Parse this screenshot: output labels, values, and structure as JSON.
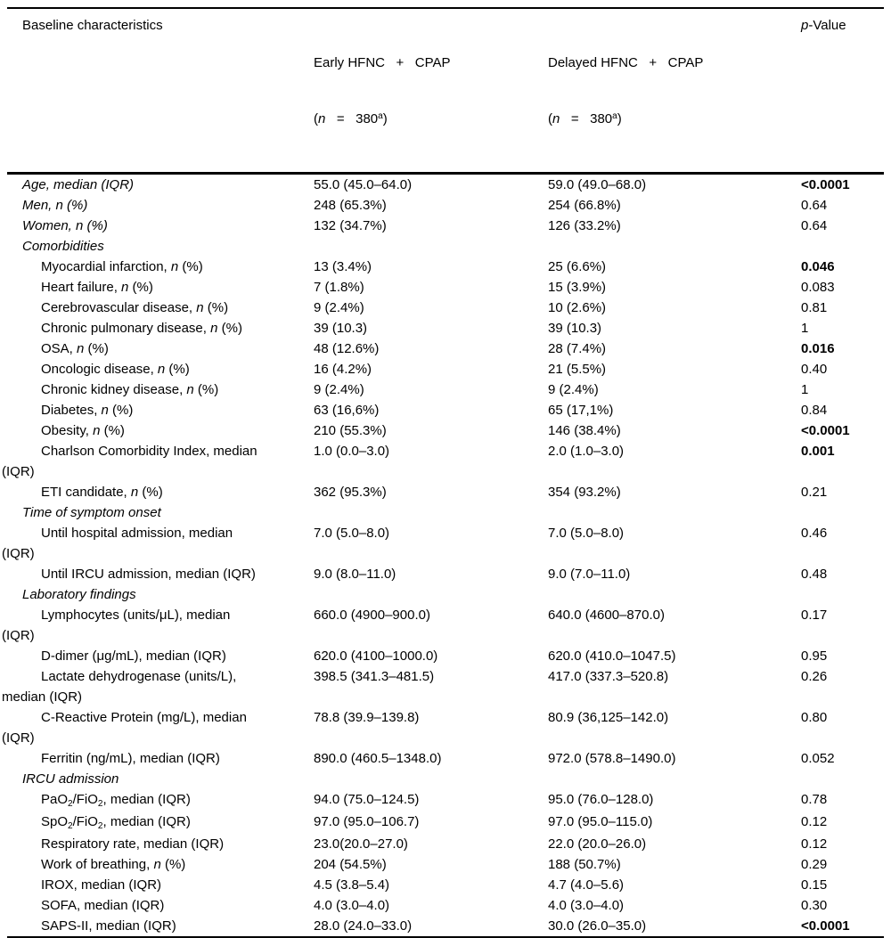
{
  "header": {
    "col1": "Baseline characteristics",
    "early": {
      "line1": [
        {
          "t": "Early HFNC   +   CPAP"
        }
      ],
      "line2": [
        {
          "t": "("
        },
        {
          "t": "n",
          "i": true
        },
        {
          "t": "   =   380"
        },
        {
          "t": "a",
          "sup": true
        },
        {
          "t": ")"
        }
      ]
    },
    "delayed": {
      "line1": [
        {
          "t": "Delayed HFNC   +   CPAP"
        }
      ],
      "line2": [
        {
          "t": "("
        },
        {
          "t": "n",
          "i": true
        },
        {
          "t": "   =   380"
        },
        {
          "t": "a",
          "sup": true
        },
        {
          "t": ")"
        }
      ]
    },
    "pvalue": [
      {
        "t": "p",
        "i": true
      },
      {
        "t": "-Value"
      }
    ]
  },
  "rows": [
    {
      "type": "top",
      "label": [
        [
          {
            "t": "Age, median (IQR)"
          }
        ]
      ],
      "early": "55.0 (45.0–64.0)",
      "delayed": "59.0 (49.0–68.0)",
      "p": "<0.0001",
      "p_bold": true
    },
    {
      "type": "top",
      "label": [
        [
          {
            "t": "Men, n (%)"
          }
        ]
      ],
      "early": "248 (65.3%)",
      "delayed": "254 (66.8%)",
      "p": "0.64",
      "p_bold": false
    },
    {
      "type": "top",
      "label": [
        [
          {
            "t": "Women, n (%)"
          }
        ]
      ],
      "early": "132 (34.7%)",
      "delayed": "126 (33.2%)",
      "p": "0.64",
      "p_bold": false
    },
    {
      "type": "section",
      "label": [
        [
          {
            "t": "Comorbidities"
          }
        ]
      ]
    },
    {
      "type": "sub",
      "label": [
        [
          {
            "t": "Myocardial infarction, "
          },
          {
            "t": "n",
            "i": true
          },
          {
            "t": " (%)"
          }
        ]
      ],
      "early": "13 (3.4%)",
      "delayed": "25 (6.6%)",
      "p": "0.046",
      "p_bold": true
    },
    {
      "type": "sub",
      "label": [
        [
          {
            "t": "Heart failure, "
          },
          {
            "t": "n",
            "i": true
          },
          {
            "t": " (%)"
          }
        ]
      ],
      "early": "7 (1.8%)",
      "delayed": "15 (3.9%)",
      "p": "0.083",
      "p_bold": false
    },
    {
      "type": "sub",
      "label": [
        [
          {
            "t": "Cerebrovascular disease, "
          },
          {
            "t": "n",
            "i": true
          },
          {
            "t": " (%)"
          }
        ]
      ],
      "early": "9 (2.4%)",
      "delayed": "10 (2.6%)",
      "p": "0.81",
      "p_bold": false
    },
    {
      "type": "sub",
      "label": [
        [
          {
            "t": "Chronic pulmonary disease, "
          },
          {
            "t": "n",
            "i": true
          },
          {
            "t": " (%)"
          }
        ]
      ],
      "early": "39 (10.3)",
      "delayed": "39 (10.3)",
      "p": "1",
      "p_bold": false
    },
    {
      "type": "sub",
      "label": [
        [
          {
            "t": "OSA, "
          },
          {
            "t": "n",
            "i": true
          },
          {
            "t": " (%)"
          }
        ]
      ],
      "early": "48 (12.6%)",
      "delayed": "28 (7.4%)",
      "p": "0.016",
      "p_bold": true
    },
    {
      "type": "sub",
      "label": [
        [
          {
            "t": "Oncologic disease, "
          },
          {
            "t": "n",
            "i": true
          },
          {
            "t": " (%)"
          }
        ]
      ],
      "early": "16 (4.2%)",
      "delayed": "21 (5.5%)",
      "p": "0.40",
      "p_bold": false
    },
    {
      "type": "sub",
      "label": [
        [
          {
            "t": "Chronic kidney disease, "
          },
          {
            "t": "n",
            "i": true
          },
          {
            "t": " (%)"
          }
        ]
      ],
      "early": "9 (2.4%)",
      "delayed": "9 (2.4%)",
      "p": "1",
      "p_bold": false
    },
    {
      "type": "sub",
      "label": [
        [
          {
            "t": "Diabetes, "
          },
          {
            "t": "n",
            "i": true
          },
          {
            "t": " (%)"
          }
        ]
      ],
      "early": "63 (16,6%)",
      "delayed": "65 (17,1%)",
      "p": "0.84",
      "p_bold": false
    },
    {
      "type": "sub",
      "label": [
        [
          {
            "t": "Obesity, "
          },
          {
            "t": "n",
            "i": true
          },
          {
            "t": " (%)"
          }
        ]
      ],
      "early": "210 (55.3%)",
      "delayed": "146 (38.4%)",
      "p": "<0.0001",
      "p_bold": true
    },
    {
      "type": "sub",
      "label": [
        [
          {
            "t": "Charlson Comorbidity Index, median"
          }
        ],
        [
          {
            "t": "(IQR)"
          }
        ]
      ],
      "early": "1.0 (0.0–3.0)",
      "delayed": "2.0 (1.0–3.0)",
      "p": "0.001",
      "p_bold": true
    },
    {
      "type": "sub",
      "label": [
        [
          {
            "t": "ETI candidate, "
          },
          {
            "t": "n",
            "i": true
          },
          {
            "t": " (%)"
          }
        ]
      ],
      "early": "362 (95.3%)",
      "delayed": "354 (93.2%)",
      "p": "0.21",
      "p_bold": false
    },
    {
      "type": "section",
      "label": [
        [
          {
            "t": "Time of symptom onset"
          }
        ]
      ]
    },
    {
      "type": "sub",
      "label": [
        [
          {
            "t": "Until hospital admission, median"
          }
        ],
        [
          {
            "t": "(IQR)"
          }
        ]
      ],
      "early": "7.0 (5.0–8.0)",
      "delayed": "7.0 (5.0–8.0)",
      "p": "0.46",
      "p_bold": false
    },
    {
      "type": "sub",
      "label": [
        [
          {
            "t": "Until IRCU admission, median (IQR)"
          }
        ]
      ],
      "early": "9.0 (8.0–11.0)",
      "delayed": "9.0 (7.0–11.0)",
      "p": "0.48",
      "p_bold": false
    },
    {
      "type": "section",
      "label": [
        [
          {
            "t": "Laboratory findings"
          }
        ]
      ]
    },
    {
      "type": "sub",
      "label": [
        [
          {
            "t": "Lymphocytes (units/μL), median"
          }
        ],
        [
          {
            "t": "(IQR)"
          }
        ]
      ],
      "early": "660.0 (4900–900.0)",
      "delayed": "640.0 (4600–870.0)",
      "p": "0.17",
      "p_bold": false
    },
    {
      "type": "sub",
      "label": [
        [
          {
            "t": "D-dimer (μg/mL), median (IQR)"
          }
        ]
      ],
      "early": "620.0 (4100–1000.0)",
      "delayed": "620.0 (410.0–1047.5)",
      "p": "0.95",
      "p_bold": false
    },
    {
      "type": "sub",
      "label": [
        [
          {
            "t": "Lactate dehydrogenase (units/L),"
          }
        ],
        [
          {
            "t": "median (IQR)"
          }
        ]
      ],
      "early": "398.5 (341.3–481.5)",
      "delayed": "417.0 (337.3–520.8)",
      "p": "0.26",
      "p_bold": false
    },
    {
      "type": "sub",
      "label": [
        [
          {
            "t": "C-Reactive Protein (mg/L), median"
          }
        ],
        [
          {
            "t": "(IQR)"
          }
        ]
      ],
      "early": "78.8 (39.9–139.8)",
      "delayed": "80.9 (36,125–142.0)",
      "p": "0.80",
      "p_bold": false
    },
    {
      "type": "sub",
      "label": [
        [
          {
            "t": "Ferritin (ng/mL), median (IQR)"
          }
        ]
      ],
      "early": "890.0 (460.5–1348.0)",
      "delayed": "972.0 (578.8–1490.0)",
      "p": "0.052",
      "p_bold": false
    },
    {
      "type": "section",
      "label": [
        [
          {
            "t": "IRCU admission"
          }
        ]
      ]
    },
    {
      "type": "sub",
      "label": [
        [
          {
            "t": "PaO"
          },
          {
            "t": "2",
            "sb": true
          },
          {
            "t": "/FiO"
          },
          {
            "t": "2",
            "sb": true
          },
          {
            "t": ", median (IQR)"
          }
        ]
      ],
      "early": "94.0 (75.0–124.5)",
      "delayed": "95.0 (76.0–128.0)",
      "p": "0.78",
      "p_bold": false
    },
    {
      "type": "sub",
      "label": [
        [
          {
            "t": "SpO"
          },
          {
            "t": "2",
            "sb": true
          },
          {
            "t": "/FiO"
          },
          {
            "t": "2",
            "sb": true
          },
          {
            "t": ", median (IQR)"
          }
        ]
      ],
      "early": "97.0 (95.0–106.7)",
      "delayed": "97.0 (95.0–115.0)",
      "p": "0.12",
      "p_bold": false
    },
    {
      "type": "sub",
      "label": [
        [
          {
            "t": "Respiratory rate, median (IQR)"
          }
        ]
      ],
      "early": "23.0(20.0–27.0)",
      "delayed": "22.0 (20.0–26.0)",
      "p": "0.12",
      "p_bold": false
    },
    {
      "type": "sub",
      "label": [
        [
          {
            "t": "Work of breathing, "
          },
          {
            "t": "n",
            "i": true
          },
          {
            "t": " (%)"
          }
        ]
      ],
      "early": "204 (54.5%)",
      "delayed": "188 (50.7%)",
      "p": "0.29",
      "p_bold": false
    },
    {
      "type": "sub",
      "label": [
        [
          {
            "t": "IROX, median (IQR)"
          }
        ]
      ],
      "early": "4.5 (3.8–5.4)",
      "delayed": "4.7 (4.0–5.6)",
      "p": "0.15",
      "p_bold": false
    },
    {
      "type": "sub",
      "label": [
        [
          {
            "t": "SOFA, median (IQR)"
          }
        ]
      ],
      "early": "4.0 (3.0–4.0)",
      "delayed": "4.0 (3.0–4.0)",
      "p": "0.30",
      "p_bold": false
    },
    {
      "type": "sub",
      "label": [
        [
          {
            "t": "SAPS-II, median (IQR)"
          }
        ]
      ],
      "early": "28.0 (24.0–33.0)",
      "delayed": "30.0 (26.0–35.0)",
      "p": "<0.0001",
      "p_bold": true
    }
  ]
}
